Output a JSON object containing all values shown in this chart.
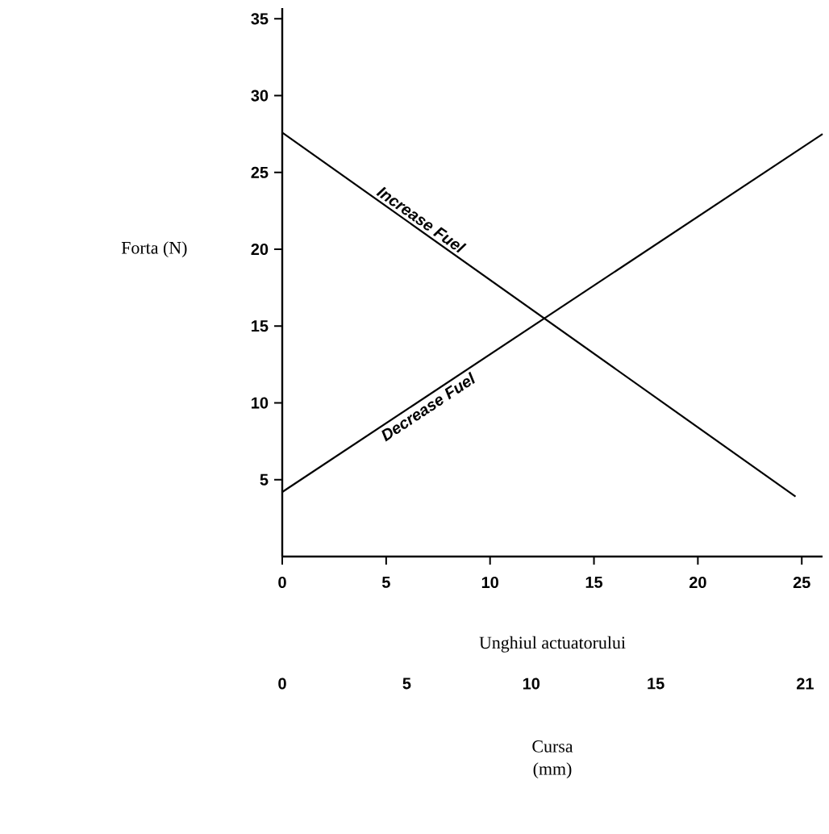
{
  "chart_data": {
    "type": "line",
    "xlabel": "Unghiul actuatorului",
    "ylabel": "Forta (N)",
    "x2label": "Cursa (mm)",
    "xlim": [
      0,
      26
    ],
    "ylim": [
      0,
      35.7
    ],
    "xticks": [
      0,
      5,
      10,
      15,
      20,
      25
    ],
    "yticks": [
      5,
      10,
      15,
      20,
      25,
      30,
      35
    ],
    "x2lim": [
      0,
      21.7
    ],
    "x2ticks": [
      0,
      5,
      10,
      15,
      21
    ],
    "series": [
      {
        "color": "#000000",
        "x": [
          0,
          24.7
        ],
        "values": [
          27.6,
          3.9
        ]
      },
      {
        "color": "#000000",
        "x": [
          0,
          26
        ],
        "values": [
          4.2,
          27.5
        ]
      }
    ],
    "annotations": [
      "**Increase Fuel**",
      "**Decrease Fuel**"
    ],
    "grid": false,
    "marker": "none",
    "line_style": "solid"
  }
}
